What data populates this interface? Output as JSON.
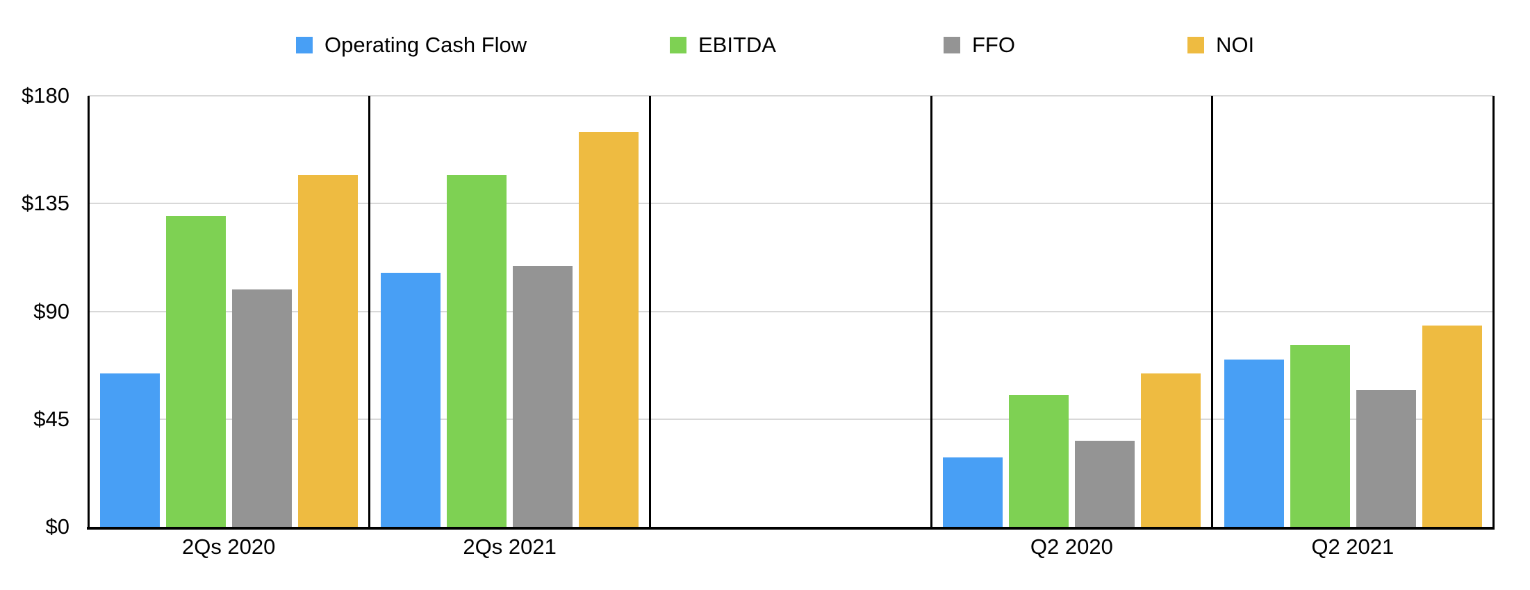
{
  "chart_data": {
    "type": "bar",
    "title": "",
    "categories": [
      "2Qs 2020",
      "2Qs 2021",
      "",
      "Q2 2020",
      "Q2 2021"
    ],
    "series": [
      {
        "name": "Operating Cash Flow",
        "color": "#489FF5",
        "values": [
          64,
          106,
          null,
          29,
          70
        ]
      },
      {
        "name": "EBITDA",
        "color": "#7ED153",
        "values": [
          130,
          147,
          null,
          55,
          76
        ]
      },
      {
        "name": "FFO",
        "color": "#949494",
        "values": [
          99,
          109,
          null,
          36,
          57
        ]
      },
      {
        "name": "NOI",
        "color": "#EEBB41",
        "values": [
          147,
          165,
          null,
          64,
          84
        ]
      }
    ],
    "xlabel": "",
    "ylabel": "",
    "y_ticks": [
      "$180",
      "$135",
      "$90",
      "$45",
      "$0"
    ],
    "y_tick_values": [
      180,
      135,
      90,
      45,
      0
    ],
    "ylim": [
      0,
      180
    ],
    "grid": true,
    "legend_position": "top",
    "axis_color": "#000000",
    "gridline_color": "#D8D8D8",
    "text_color": "#000000",
    "background_color": "#FFFFFF"
  }
}
